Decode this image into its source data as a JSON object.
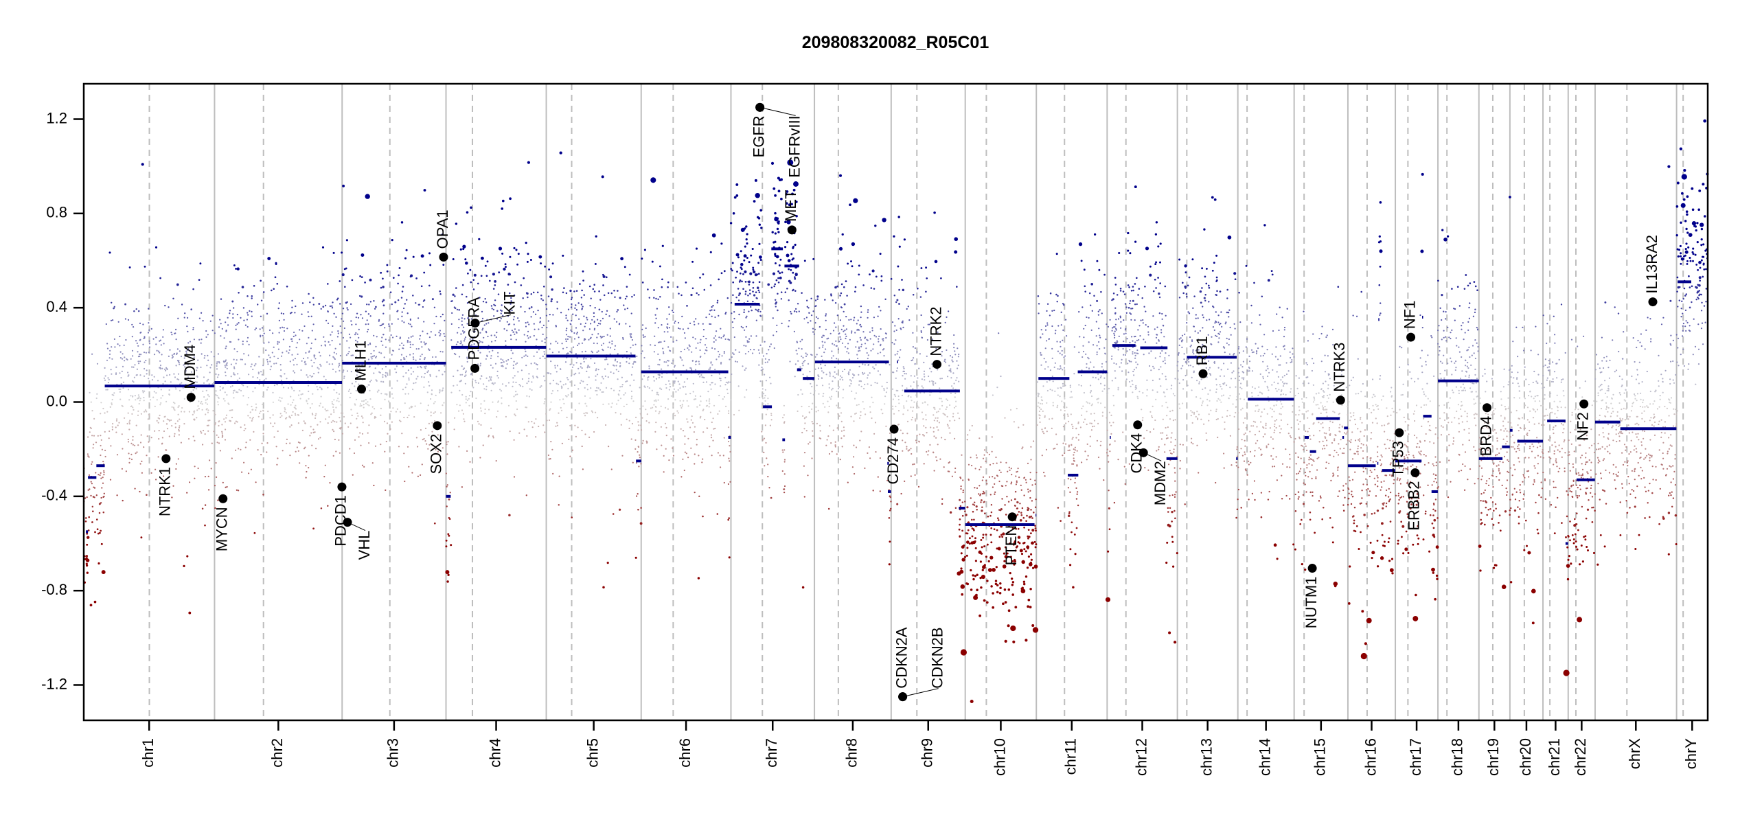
{
  "chart_data": {
    "type": "scatter",
    "title": "209808320082_R05C01",
    "xlabel": "",
    "ylabel": "",
    "ylim": [
      -1.35,
      1.35
    ],
    "y_ticks": [
      "-1.2",
      "-0.8",
      "-0.4",
      "0.0",
      "0.4",
      "0.8",
      "1.2"
    ],
    "grid": false,
    "legend": "none",
    "colors": {
      "segment": "#00008B",
      "gain": "#00008B",
      "neutral": "#D3D3D3",
      "loss": "#8B0000",
      "chromosome_boundary": "#BEBEBE",
      "centromere": "#BEBEBE",
      "gene_marker": "#000000"
    },
    "chromosomes": [
      {
        "name": "chr1",
        "length_mb": 249.25,
        "centromere_mb": 125.0
      },
      {
        "name": "chr2",
        "length_mb": 243.2,
        "centromere_mb": 93.3
      },
      {
        "name": "chr3",
        "length_mb": 198.0,
        "centromere_mb": 91.0
      },
      {
        "name": "chr4",
        "length_mb": 191.15,
        "centromere_mb": 50.4
      },
      {
        "name": "chr5",
        "length_mb": 180.9,
        "centromere_mb": 48.4
      },
      {
        "name": "chr6",
        "length_mb": 171.1,
        "centromere_mb": 61.0
      },
      {
        "name": "chr7",
        "length_mb": 159.1,
        "centromere_mb": 59.9
      },
      {
        "name": "chr8",
        "length_mb": 146.3,
        "centromere_mb": 45.6
      },
      {
        "name": "chr9",
        "length_mb": 141.2,
        "centromere_mb": 49.0
      },
      {
        "name": "chr10",
        "length_mb": 135.5,
        "centromere_mb": 40.2
      },
      {
        "name": "chr11",
        "length_mb": 135.0,
        "centromere_mb": 53.7
      },
      {
        "name": "chr12",
        "length_mb": 133.9,
        "centromere_mb": 35.8
      },
      {
        "name": "chr13",
        "length_mb": 115.2,
        "centromere_mb": 17.9
      },
      {
        "name": "chr14",
        "length_mb": 107.3,
        "centromere_mb": 17.6
      },
      {
        "name": "chr15",
        "length_mb": 102.5,
        "centromere_mb": 19.0
      },
      {
        "name": "chr16",
        "length_mb": 90.4,
        "centromere_mb": 36.6
      },
      {
        "name": "chr17",
        "length_mb": 81.2,
        "centromere_mb": 24.0
      },
      {
        "name": "chr18",
        "length_mb": 78.1,
        "centromere_mb": 17.2
      },
      {
        "name": "chr19",
        "length_mb": 59.1,
        "centromere_mb": 26.5
      },
      {
        "name": "chr20",
        "length_mb": 63.0,
        "centromere_mb": 27.5
      },
      {
        "name": "chr21",
        "length_mb": 48.1,
        "centromere_mb": 13.2
      },
      {
        "name": "chr22",
        "length_mb": 51.3,
        "centromere_mb": 14.7
      },
      {
        "name": "chrX",
        "length_mb": 155.3,
        "centromere_mb": 60.6
      },
      {
        "name": "chrY",
        "length_mb": 59.4,
        "centromere_mb": 12.5
      }
    ],
    "segments": [
      {
        "chr": "chr1",
        "start": 4,
        "end": 8,
        "value": -0.55
      },
      {
        "chr": "chr1",
        "start": 8,
        "end": 24,
        "value": -0.32
      },
      {
        "chr": "chr1",
        "start": 24,
        "end": 40,
        "value": -0.27
      },
      {
        "chr": "chr1",
        "start": 40,
        "end": 249,
        "value": 0.068
      },
      {
        "chr": "chr2",
        "start": 0,
        "end": 243,
        "value": 0.083
      },
      {
        "chr": "chr3",
        "start": 0,
        "end": 198,
        "value": 0.165
      },
      {
        "chr": "chr4",
        "start": 0,
        "end": 9,
        "value": -0.4
      },
      {
        "chr": "chr4",
        "start": 10,
        "end": 191,
        "value": 0.232
      },
      {
        "chr": "chr5",
        "start": 0,
        "end": 170,
        "value": 0.195
      },
      {
        "chr": "chr5",
        "start": 171,
        "end": 181,
        "value": -0.25
      },
      {
        "chr": "chr6",
        "start": 0,
        "end": 166,
        "value": 0.128
      },
      {
        "chr": "chr6",
        "start": 166,
        "end": 171,
        "value": -0.15
      },
      {
        "chr": "chr7",
        "start": 7,
        "end": 55,
        "value": 0.415
      },
      {
        "chr": "chr7",
        "start": 61,
        "end": 78,
        "value": -0.02
      },
      {
        "chr": "chr7",
        "start": 77,
        "end": 99,
        "value": 0.65
      },
      {
        "chr": "chr7",
        "start": 98,
        "end": 103,
        "value": -0.16
      },
      {
        "chr": "chr7",
        "start": 102,
        "end": 130,
        "value": 0.577
      },
      {
        "chr": "chr7",
        "start": 126,
        "end": 134,
        "value": 0.137
      },
      {
        "chr": "chr7",
        "start": 137,
        "end": 159,
        "value": 0.1
      },
      {
        "chr": "chr8",
        "start": 1,
        "end": 142,
        "value": 0.17
      },
      {
        "chr": "chr8",
        "start": 139,
        "end": 142,
        "value": -0.26
      },
      {
        "chr": "chr8",
        "start": 140,
        "end": 146,
        "value": -0.38
      },
      {
        "chr": "chr9",
        "start": 11,
        "end": 13,
        "value": 0.17
      },
      {
        "chr": "chr9",
        "start": 25,
        "end": 131,
        "value": 0.047
      },
      {
        "chr": "chr9",
        "start": 129,
        "end": 141,
        "value": -0.45
      },
      {
        "chr": "chr10",
        "start": 0,
        "end": 132,
        "value": -0.52
      },
      {
        "chr": "chr10",
        "start": 134,
        "end": 135.5,
        "value": -0.48
      },
      {
        "chr": "chr11",
        "start": 4,
        "end": 63,
        "value": 0.1
      },
      {
        "chr": "chr11",
        "start": 60,
        "end": 80,
        "value": -0.31
      },
      {
        "chr": "chr11",
        "start": 79,
        "end": 135,
        "value": 0.128
      },
      {
        "chr": "chr12",
        "start": 5,
        "end": 7,
        "value": -0.15
      },
      {
        "chr": "chr12",
        "start": 10,
        "end": 54,
        "value": 0.24
      },
      {
        "chr": "chr12",
        "start": 63,
        "end": 115,
        "value": 0.23
      },
      {
        "chr": "chr12",
        "start": 113,
        "end": 134,
        "value": -0.24
      },
      {
        "chr": "chr13",
        "start": 18,
        "end": 113,
        "value": 0.19
      },
      {
        "chr": "chr13",
        "start": 112,
        "end": 115,
        "value": -0.24
      },
      {
        "chr": "chr14",
        "start": 19,
        "end": 107,
        "value": 0.012
      },
      {
        "chr": "chr15",
        "start": 20,
        "end": 28,
        "value": -0.15
      },
      {
        "chr": "chr15",
        "start": 30,
        "end": 42,
        "value": -0.21
      },
      {
        "chr": "chr15",
        "start": 42,
        "end": 87,
        "value": -0.07
      },
      {
        "chr": "chr15",
        "start": 92,
        "end": 95,
        "value": -0.15
      },
      {
        "chr": "chr15",
        "start": 95,
        "end": 102.5,
        "value": -0.11
      },
      {
        "chr": "chr16",
        "start": 0,
        "end": 53,
        "value": -0.27
      },
      {
        "chr": "chr16",
        "start": 56,
        "end": 58,
        "value": -0.26
      },
      {
        "chr": "chr16",
        "start": 58,
        "end": 60,
        "value": 0.35
      },
      {
        "chr": "chr16",
        "start": 65,
        "end": 90,
        "value": -0.29
      },
      {
        "chr": "chr17",
        "start": 0,
        "end": 50,
        "value": -0.25
      },
      {
        "chr": "chr17",
        "start": 51,
        "end": 53,
        "value": 0.36
      },
      {
        "chr": "chr17",
        "start": 53,
        "end": 69,
        "value": -0.06
      },
      {
        "chr": "chr17",
        "start": 69,
        "end": 81,
        "value": -0.38
      },
      {
        "chr": "chr18",
        "start": 0,
        "end": 78,
        "value": 0.09
      },
      {
        "chr": "chr19",
        "start": 0,
        "end": 45,
        "value": -0.24
      },
      {
        "chr": "chr19",
        "start": 44,
        "end": 59,
        "value": -0.19
      },
      {
        "chr": "chr20",
        "start": 0,
        "end": 5,
        "value": -0.12
      },
      {
        "chr": "chr20",
        "start": 14,
        "end": 63,
        "value": -0.166
      },
      {
        "chr": "chr21",
        "start": 8,
        "end": 43,
        "value": -0.08
      },
      {
        "chr": "chr21",
        "start": 43,
        "end": 48,
        "value": -0.6
      },
      {
        "chr": "chr22",
        "start": 16,
        "end": 51,
        "value": -0.33
      },
      {
        "chr": "chrX",
        "start": 0,
        "end": 48,
        "value": -0.085
      },
      {
        "chr": "chrX",
        "start": 48,
        "end": 155,
        "value": -0.113
      },
      {
        "chr": "chrY",
        "start": 2,
        "end": 28,
        "value": 0.51
      }
    ],
    "genes": [
      {
        "name": "NTRK1",
        "chr": "chr1",
        "pos": 156.8,
        "value": -0.24
      },
      {
        "name": "MDM4",
        "chr": "chr1",
        "pos": 204.5,
        "value": 0.02
      },
      {
        "name": "MYCN",
        "chr": "chr2",
        "pos": 16.1,
        "value": -0.41
      },
      {
        "name": "PDCD1",
        "chr": "chr2",
        "pos": 242.8,
        "value": -0.36
      },
      {
        "name": "VHL",
        "chr": "chr3",
        "pos": 10.2,
        "value": -0.51
      },
      {
        "name": "MLH1",
        "chr": "chr3",
        "pos": 37.0,
        "value": 0.055
      },
      {
        "name": "SOX2",
        "chr": "chr3",
        "pos": 181.4,
        "value": -0.1
      },
      {
        "name": "OPA1",
        "chr": "chr3",
        "pos": 193.4,
        "value": 0.615
      },
      {
        "name": "PDGFRA",
        "chr": "chr4",
        "pos": 55.1,
        "value": 0.143
      },
      {
        "name": "KIT",
        "chr": "chr4",
        "pos": 55.5,
        "value": 0.335
      },
      {
        "name": "EGFR",
        "chr": "chr7",
        "pos": 55.2,
        "value": 1.25
      },
      {
        "name": "EGFRvIII",
        "chr": "chr7",
        "pos": 55.2,
        "value": 1.25
      },
      {
        "name": "MET",
        "chr": "chr7",
        "pos": 116.3,
        "value": 0.73
      },
      {
        "name": "CD274",
        "chr": "chr9",
        "pos": 5.5,
        "value": -0.115
      },
      {
        "name": "CDKN2A",
        "chr": "chr9",
        "pos": 21.97,
        "value": -1.25
      },
      {
        "name": "CDKN2B",
        "chr": "chr9",
        "pos": 22.0,
        "value": -1.25
      },
      {
        "name": "NTRK2",
        "chr": "chr9",
        "pos": 87.3,
        "value": 0.16
      },
      {
        "name": "PTEN",
        "chr": "chr10",
        "pos": 89.6,
        "value": -0.487
      },
      {
        "name": "CDK4",
        "chr": "chr12",
        "pos": 58.1,
        "value": -0.097
      },
      {
        "name": "MDM2",
        "chr": "chr12",
        "pos": 69.2,
        "value": -0.215
      },
      {
        "name": "RB1",
        "chr": "chr13",
        "pos": 48.9,
        "value": 0.12
      },
      {
        "name": "NUTM1",
        "chr": "chr15",
        "pos": 34.6,
        "value": -0.705
      },
      {
        "name": "NTRK3",
        "chr": "chr15",
        "pos": 88.5,
        "value": 0.008
      },
      {
        "name": "TP53",
        "chr": "chr17",
        "pos": 7.6,
        "value": -0.13
      },
      {
        "name": "NF1",
        "chr": "chr17",
        "pos": 29.5,
        "value": 0.275
      },
      {
        "name": "ERBB2",
        "chr": "chr17",
        "pos": 37.8,
        "value": -0.3
      },
      {
        "name": "BRD4",
        "chr": "chr19",
        "pos": 15.4,
        "value": -0.024
      },
      {
        "name": "NF2",
        "chr": "chr22",
        "pos": 30.0,
        "value": -0.008
      },
      {
        "name": "IL13RA2",
        "chr": "chrX",
        "pos": 110.0,
        "value": 0.425
      }
    ]
  }
}
